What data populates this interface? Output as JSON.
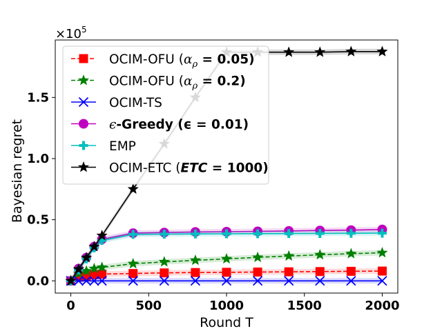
{
  "chart_data": {
    "type": "line",
    "title": "",
    "xlabel": "Round T",
    "ylabel": "Bayesian regret",
    "y_multiplier_label": "×10",
    "y_multiplier_exp": "5",
    "xlim": [
      -100,
      2100
    ],
    "ylim": [
      -0.1,
      1.97
    ],
    "x_ticks": [
      0,
      500,
      1000,
      1500,
      2000
    ],
    "y_ticks": [
      0.0,
      0.5,
      1.0,
      1.5
    ],
    "x_tick_labels": [
      "0",
      "500",
      "1000",
      "1500",
      "2000"
    ],
    "y_tick_labels": [
      "0.0",
      "0.5",
      "1.0",
      "1.5"
    ],
    "grid": false,
    "legend_position": "top-left",
    "x": [
      0,
      50,
      100,
      150,
      200,
      400,
      600,
      800,
      1000,
      1200,
      1400,
      1600,
      1800,
      2000
    ],
    "series": [
      {
        "name": "OCIM-OFU (αρ = 0.05)",
        "legend": {
          "pre": "OCIM-OFU (",
          "math": "α",
          "sub": "ρ",
          "post": " = 0.05)"
        },
        "color": "#ff0000",
        "marker": "square",
        "dash": "dashed",
        "values": [
          0.0,
          0.03,
          0.04,
          0.05,
          0.055,
          0.06,
          0.065,
          0.068,
          0.07,
          0.072,
          0.074,
          0.076,
          0.078,
          0.08
        ]
      },
      {
        "name": "OCIM-OFU (αρ = 0.2)",
        "legend": {
          "pre": "OCIM-OFU (",
          "math": "α",
          "sub": "ρ",
          "post": " = 0.2)"
        },
        "color": "#008000",
        "marker": "star",
        "dash": "dashed",
        "values": [
          0.0,
          0.06,
          0.08,
          0.1,
          0.11,
          0.14,
          0.155,
          0.168,
          0.18,
          0.192,
          0.203,
          0.213,
          0.222,
          0.23
        ]
      },
      {
        "name": "OCIM-TS",
        "legend": {
          "pre": "OCIM-TS",
          "math": "",
          "sub": "",
          "post": ""
        },
        "color": "#0000ff",
        "marker": "x",
        "dash": "solid",
        "values": [
          0.0,
          0.0,
          0.0,
          0.0,
          0.0,
          0.0,
          0.0,
          0.0,
          0.0,
          0.0,
          0.0,
          0.0,
          0.0,
          0.0
        ]
      },
      {
        "name": "ϵ-Greedy (ϵ = 0.01)",
        "legend": {
          "pre": "",
          "math": "ϵ",
          "sub": "",
          "post": "-Greedy (ϵ = 0.01)"
        },
        "color": "#bf00bf",
        "marker": "circle",
        "dash": "solid",
        "values": [
          0.0,
          0.1,
          0.19,
          0.28,
          0.34,
          0.39,
          0.395,
          0.4,
          0.402,
          0.405,
          0.408,
          0.412,
          0.415,
          0.42
        ]
      },
      {
        "name": "EMP",
        "legend": {
          "pre": "EMP",
          "math": "",
          "sub": "",
          "post": ""
        },
        "color": "#00bfbf",
        "marker": "plus",
        "dash": "solid",
        "values": [
          0.0,
          0.09,
          0.18,
          0.27,
          0.33,
          0.38,
          0.382,
          0.384,
          0.385,
          0.386,
          0.387,
          0.388,
          0.389,
          0.39
        ]
      },
      {
        "name": "OCIM-ETC (ETC = 1000)",
        "legend": {
          "pre": "OCIM-ETC (",
          "math": "ETC",
          "sub": "",
          "post": " = 1000)"
        },
        "color": "#000000",
        "marker": "star",
        "dash": "solid",
        "values": [
          0.0,
          0.095,
          0.19,
          0.28,
          0.37,
          0.75,
          1.12,
          1.5,
          1.87,
          1.87,
          1.87,
          1.87,
          1.875,
          1.875
        ]
      }
    ]
  }
}
